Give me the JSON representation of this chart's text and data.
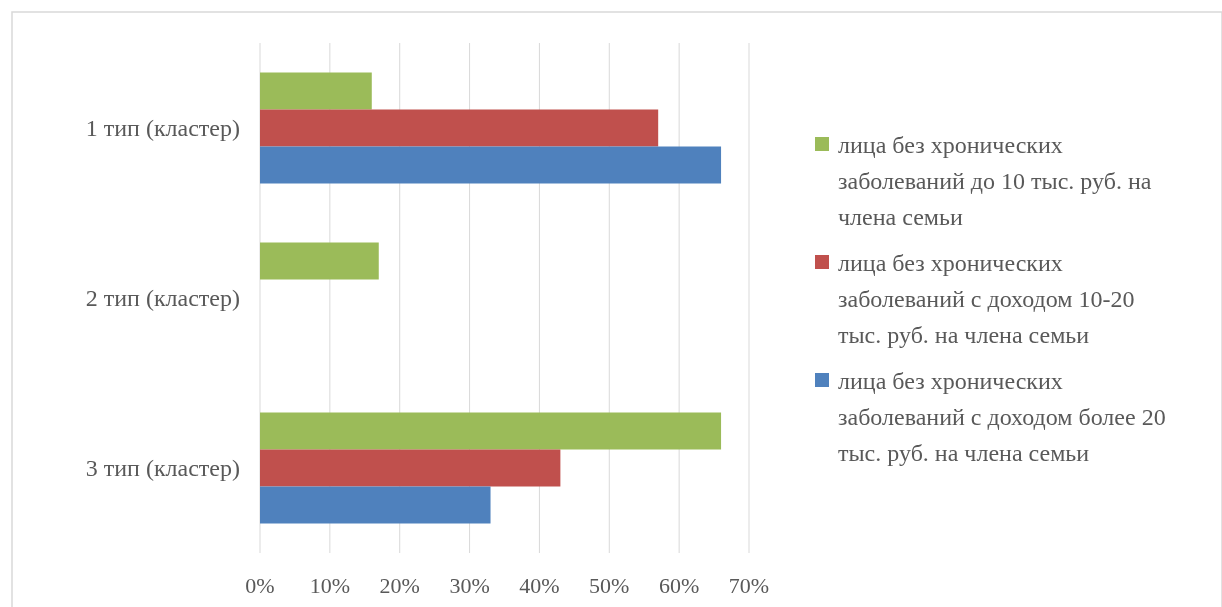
{
  "chart_data": {
    "type": "bar",
    "orientation": "horizontal",
    "categories": [
      "1 тип (кластер)",
      "2 тип (кластер)",
      "3 тип (кластер)"
    ],
    "series": [
      {
        "name": "лица без хронических заболеваний до 10 тыс. руб. на члена семьи",
        "color": "#9bbb59",
        "values": [
          16,
          17,
          66
        ]
      },
      {
        "name": "лица без хронических заболеваний с доходом 10-20 тыс. руб. на члена семьи",
        "color": "#c0504d",
        "values": [
          57,
          0,
          43
        ]
      },
      {
        "name": "лица без хронических заболеваний с доходом более 20 тыс. руб. на члена семьи",
        "color": "#4f81bd",
        "values": [
          66,
          0,
          33
        ]
      }
    ],
    "xlim": [
      0,
      70
    ],
    "xticks": [
      {
        "value": 0,
        "label": "0%"
      },
      {
        "value": 10,
        "label": "10%"
      },
      {
        "value": 20,
        "label": "20%"
      },
      {
        "value": 30,
        "label": "30%"
      },
      {
        "value": 40,
        "label": "40%"
      },
      {
        "value": 50,
        "label": "50%"
      },
      {
        "value": 60,
        "label": "60%"
      },
      {
        "value": 70,
        "label": "70%"
      }
    ],
    "grid": "x",
    "legend": "right"
  }
}
